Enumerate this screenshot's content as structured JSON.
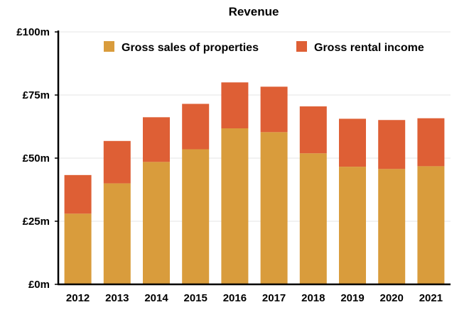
{
  "chart_data": {
    "type": "bar",
    "stacked": true,
    "title": "Revenue",
    "xlabel": "",
    "ylabel": "",
    "categories": [
      "2012",
      "2013",
      "2014",
      "2015",
      "2016",
      "2017",
      "2018",
      "2019",
      "2020",
      "2021"
    ],
    "series": [
      {
        "name": "Gross sales of properties",
        "color": "#d99c3c",
        "values": [
          28.0,
          40.0,
          48.5,
          53.5,
          61.8,
          60.3,
          51.9,
          46.6,
          45.7,
          46.8
        ]
      },
      {
        "name": "Gross rental income",
        "color": "#de5f35",
        "values": [
          15.3,
          16.8,
          17.7,
          18.0,
          18.2,
          18.0,
          18.6,
          19.0,
          19.4,
          19.0
        ]
      }
    ],
    "ylim": [
      0,
      100
    ],
    "yticks": [
      0,
      25,
      50,
      75,
      100
    ],
    "ytick_labels": [
      "£0m",
      "£25m",
      "£50m",
      "£75m",
      "£100m"
    ],
    "grid": true,
    "legend_position": "top-right"
  }
}
